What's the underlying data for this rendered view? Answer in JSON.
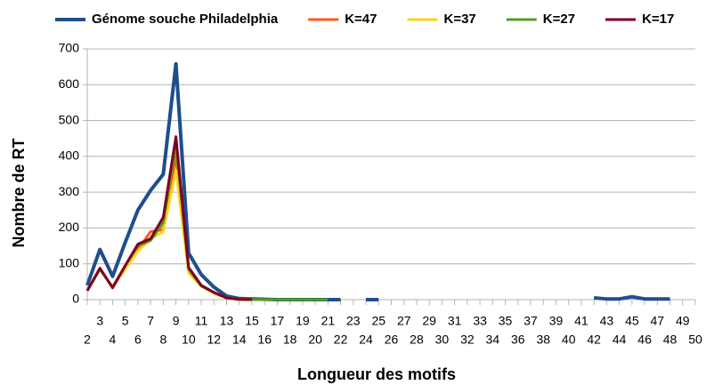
{
  "chart_data": {
    "type": "line",
    "xlabel": "Longueur des motifs",
    "ylabel": "Nombre de RT",
    "x": [
      2,
      3,
      4,
      5,
      6,
      7,
      8,
      9,
      10,
      11,
      12,
      13,
      14,
      15,
      16,
      17,
      18,
      19,
      20,
      21,
      22,
      23,
      24,
      25,
      26,
      27,
      28,
      29,
      30,
      31,
      32,
      33,
      34,
      35,
      36,
      37,
      38,
      39,
      40,
      41,
      42,
      43,
      44,
      45,
      46,
      47,
      48,
      49,
      50
    ],
    "xlim": [
      2,
      50
    ],
    "xticks": [
      2,
      3,
      4,
      5,
      6,
      7,
      8,
      9,
      10,
      11,
      12,
      13,
      14,
      15,
      16,
      17,
      18,
      19,
      20,
      21,
      22,
      23,
      24,
      25,
      26,
      27,
      28,
      29,
      30,
      31,
      32,
      33,
      34,
      35,
      36,
      37,
      38,
      39,
      40,
      41,
      42,
      43,
      44,
      45,
      46,
      47,
      48,
      49,
      50
    ],
    "ylim": [
      0,
      700
    ],
    "yticks": [
      0,
      100,
      200,
      300,
      400,
      500,
      600,
      700
    ],
    "grid": true,
    "legend": "top",
    "series": [
      {
        "name": "Génome souche Philadelphia",
        "color": "#1f4e8c",
        "values": [
          40,
          140,
          65,
          160,
          250,
          305,
          350,
          658,
          130,
          70,
          35,
          10,
          3,
          2,
          1,
          0,
          0,
          0,
          0,
          0,
          0,
          null,
          0,
          0,
          null,
          null,
          null,
          null,
          null,
          null,
          null,
          null,
          null,
          null,
          null,
          null,
          null,
          null,
          null,
          null,
          5,
          2,
          2,
          8,
          2,
          2,
          2,
          null,
          null
        ]
      },
      {
        "name": "K=47",
        "color": "#ff5a1f",
        "values": [
          25,
          85,
          35,
          90,
          140,
          190,
          195,
          400,
          80,
          40,
          20,
          5,
          1,
          0,
          null,
          null,
          null,
          null,
          null,
          null,
          null,
          null,
          null,
          null,
          null,
          null,
          null,
          null,
          null,
          null,
          null,
          null,
          null,
          null,
          null,
          null,
          null,
          null,
          null,
          null,
          null,
          null,
          null,
          null,
          null,
          null,
          null,
          null,
          null
        ]
      },
      {
        "name": "K=37",
        "color": "#ffd320",
        "values": [
          25,
          85,
          35,
          85,
          135,
          170,
          190,
          360,
          75,
          38,
          18,
          4,
          1,
          0,
          null,
          null,
          null,
          null,
          null,
          null,
          null,
          null,
          null,
          null,
          null,
          null,
          null,
          null,
          null,
          null,
          null,
          null,
          null,
          null,
          null,
          null,
          null,
          null,
          null,
          null,
          null,
          null,
          null,
          null,
          null,
          null,
          null,
          null,
          null
        ]
      },
      {
        "name": "K=27",
        "color": "#579d1c",
        "values": [
          25,
          85,
          35,
          95,
          150,
          165,
          215,
          430,
          85,
          38,
          20,
          5,
          1,
          0,
          0,
          0,
          0,
          0,
          0,
          0,
          null,
          null,
          null,
          null,
          null,
          null,
          null,
          null,
          null,
          null,
          null,
          null,
          null,
          null,
          null,
          null,
          null,
          null,
          null,
          null,
          null,
          null,
          null,
          null,
          null,
          null,
          null,
          null,
          null
        ]
      },
      {
        "name": "K=17",
        "color": "#7e0021",
        "values": [
          25,
          88,
          33,
          95,
          155,
          170,
          230,
          455,
          90,
          40,
          20,
          5,
          1,
          0,
          null,
          null,
          null,
          null,
          null,
          null,
          null,
          null,
          null,
          null,
          null,
          null,
          null,
          null,
          null,
          null,
          null,
          null,
          null,
          null,
          null,
          null,
          null,
          null,
          null,
          null,
          null,
          null,
          null,
          null,
          null,
          null,
          null,
          null,
          null
        ]
      }
    ]
  }
}
